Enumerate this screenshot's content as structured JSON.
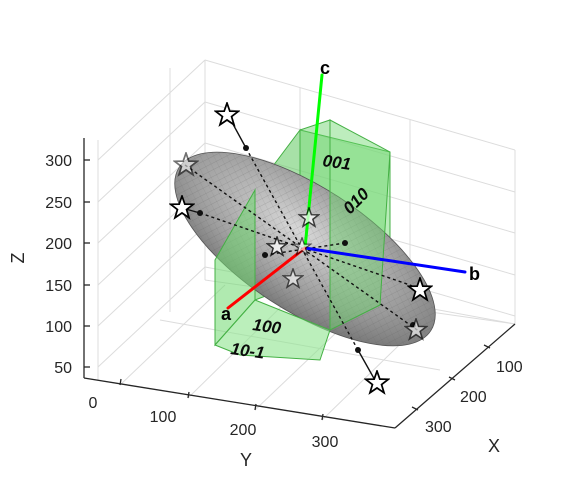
{
  "plot": {
    "axes": {
      "z": {
        "label": "Z",
        "ticks": [
          "300",
          "250",
          "200",
          "150",
          "100",
          "50"
        ]
      },
      "y": {
        "label": "Y",
        "ticks": [
          "0",
          "100",
          "200",
          "300"
        ]
      },
      "x": {
        "label": "X",
        "ticks": [
          "100",
          "200",
          "300"
        ]
      }
    },
    "vectors": {
      "a": "a",
      "b": "b",
      "c": "c"
    },
    "faces": [
      "001",
      "010",
      "100",
      "10-1"
    ],
    "colors": {
      "a": "#ff0000",
      "b": "#0000ff",
      "c": "#00ff00",
      "crystal": "#3ad03a",
      "ellipsoid": "#9a9a9a"
    }
  }
}
